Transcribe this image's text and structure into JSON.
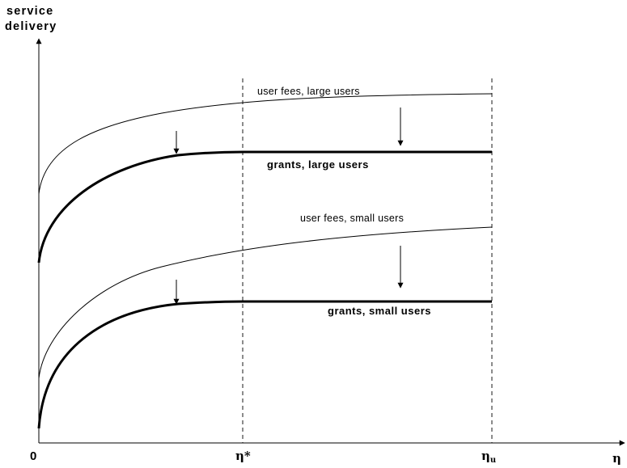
{
  "y_axis_label_line1": "service",
  "y_axis_label_line2": "delivery",
  "x_axis_label": "η",
  "x_ticks": {
    "origin": "0",
    "eta_star": "η*",
    "eta_u_base": "η",
    "eta_u_sub": "u"
  },
  "curves": {
    "user_fees_large": "user fees, large users",
    "grants_large": "grants, large users",
    "user_fees_small": "user fees, small users",
    "grants_small": "grants, small users"
  }
}
